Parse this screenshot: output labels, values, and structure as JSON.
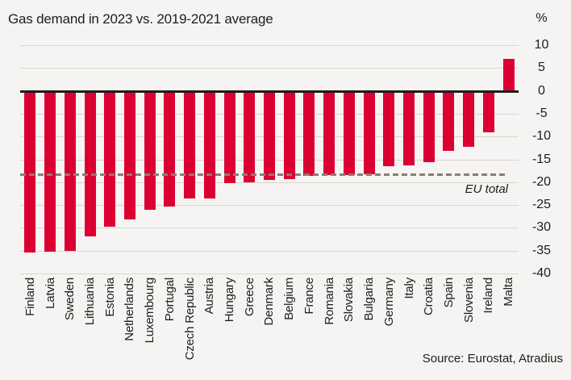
{
  "title": "Gas demand in 2023 vs. 2019-2021 average",
  "axis_unit": "%",
  "source": "Source: Eurostat, Atradius",
  "colors": {
    "bar": "#dc0032",
    "reference_line": "#8b7d78",
    "background": "#f5f4f2",
    "gridline": "#d8d6d3",
    "zero_line": "#1d1d1b",
    "text": "#1d1d1b"
  },
  "chart_data": {
    "type": "bar",
    "title": "Gas demand in 2023 vs. 2019-2021 average",
    "ylabel": "%",
    "xlabel": "",
    "ylim": [
      -40,
      10
    ],
    "yticks": [
      10,
      5,
      0,
      -5,
      -10,
      -15,
      -20,
      -25,
      -30,
      -35,
      -40
    ],
    "grid": true,
    "legend": "none",
    "bar_color": "#dc0032",
    "categories": [
      "Finland",
      "Latvia",
      "Sweden",
      "Lithuania",
      "Estonia",
      "Netherlands",
      "Luxembourg",
      "Portugal",
      "Czech Republic",
      "Austria",
      "Hungary",
      "Greece",
      "Denmark",
      "Belgium",
      "France",
      "Romania",
      "Slovakia",
      "Bulgaria",
      "Germany",
      "Italy",
      "Croatia",
      "Spain",
      "Slovenia",
      "Ireland",
      "Malta"
    ],
    "values": [
      -35.4,
      -35.2,
      -35.1,
      -31.8,
      -29.7,
      -28.2,
      -26.0,
      -25.3,
      -23.6,
      -23.5,
      -20.3,
      -20.1,
      -19.5,
      -19.4,
      -18.6,
      -18.5,
      -18.5,
      -18.3,
      -16.5,
      -16.3,
      -15.6,
      -13.2,
      -12.2,
      -9.1,
      7.0
    ],
    "reference_line": {
      "label": "EU total",
      "value": -18.4
    },
    "source": "Source: Eurostat, Atradius"
  }
}
